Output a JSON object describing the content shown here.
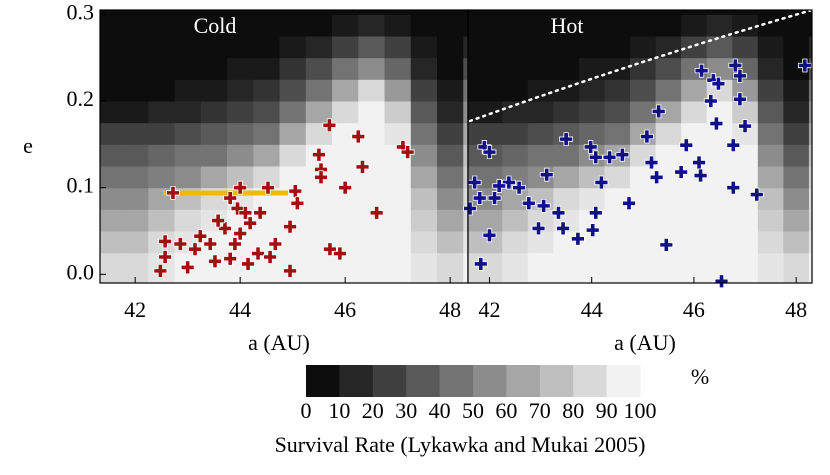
{
  "chart_data": {
    "type": "scatter",
    "ylabel": "e",
    "ylim": [
      -0.01,
      0.305
    ],
    "yticks": [
      {
        "value": 0,
        "label": "0.0"
      },
      0.1,
      0.2,
      0.3
    ],
    "heatmap": {
      "x_bins": [
        41.25,
        41.75,
        42.25,
        42.75,
        43.25,
        43.75,
        44.25,
        44.75,
        45.25,
        45.75,
        46.25,
        46.75,
        47.25,
        47.75,
        48.25,
        48.75
      ],
      "y_bins": [
        -0.025,
        0.025,
        0.05,
        0.075,
        0.1,
        0.125,
        0.15,
        0.175,
        0.2,
        0.225,
        0.25,
        0.275,
        0.3,
        0.325
      ],
      "values": [
        [
          85,
          85,
          90,
          95,
          95,
          95,
          95,
          95,
          95,
          95,
          95,
          95,
          90,
          85,
          95
        ],
        [
          75,
          75,
          85,
          90,
          95,
          95,
          95,
          95,
          95,
          95,
          95,
          95,
          85,
          75,
          90
        ],
        [
          65,
          65,
          75,
          85,
          90,
          95,
          95,
          95,
          95,
          95,
          95,
          95,
          80,
          65,
          85
        ],
        [
          55,
          55,
          65,
          75,
          85,
          90,
          95,
          95,
          95,
          95,
          95,
          95,
          75,
          55,
          85
        ],
        [
          45,
          45,
          50,
          55,
          65,
          75,
          85,
          95,
          95,
          95,
          95,
          95,
          65,
          45,
          80
        ],
        [
          35,
          35,
          40,
          45,
          45,
          55,
          65,
          85,
          95,
          95,
          95,
          95,
          55,
          35,
          75
        ],
        [
          25,
          25,
          25,
          30,
          35,
          40,
          45,
          65,
          85,
          95,
          95,
          90,
          45,
          25,
          65
        ],
        [
          10,
          10,
          15,
          15,
          20,
          25,
          30,
          45,
          65,
          85,
          95,
          80,
          35,
          15,
          55
        ],
        [
          5,
          5,
          5,
          10,
          10,
          15,
          20,
          30,
          45,
          65,
          85,
          60,
          25,
          10,
          45
        ],
        [
          5,
          5,
          5,
          5,
          5,
          10,
          10,
          20,
          30,
          45,
          55,
          40,
          15,
          5,
          30
        ],
        [
          5,
          5,
          5,
          5,
          5,
          5,
          5,
          10,
          15,
          25,
          35,
          25,
          10,
          5,
          15
        ],
        [
          5,
          5,
          5,
          5,
          5,
          5,
          5,
          5,
          5,
          10,
          15,
          10,
          5,
          5,
          5
        ],
        [
          5,
          5,
          5,
          5,
          5,
          5,
          5,
          5,
          5,
          5,
          5,
          5,
          5,
          5,
          5
        ]
      ]
    },
    "panels": [
      {
        "title": "Cold",
        "xlabel": "a (AU)",
        "xlim": [
          41.33,
          48.34
        ],
        "xticks": [
          42,
          44,
          46,
          48
        ],
        "series": [
          {
            "color": "#a01010",
            "x": [
              45.7,
              46.25,
              45.5,
              45.54,
              46.33,
              45.54,
              46.0,
              45.05,
              45.09,
              44.53,
              44.0,
              43.81,
              43.95,
              44.1,
              44.38,
              44.19,
              43.71,
              44.0,
              43.43,
              43.14,
              42.86,
              42.57,
              42.57,
              42.48,
              43.0,
              43.52,
              43.81,
              44.15,
              44.34,
              44.67,
              44.95,
              44.95,
              45.71,
              45.9,
              46.6,
              47.1,
              47.19,
              42.72,
              43.24,
              44.57,
              43.9,
              43.58
            ],
            "values": [
              0.172,
              0.159,
              0.138,
              0.121,
              0.124,
              0.112,
              0.1,
              0.096,
              0.082,
              0.1,
              0.1,
              0.088,
              0.076,
              0.071,
              0.071,
              0.059,
              0.053,
              0.047,
              0.035,
              0.029,
              0.035,
              0.038,
              0.02,
              0.004,
              0.008,
              0.015,
              0.018,
              0.012,
              0.024,
              0.035,
              0.055,
              0.004,
              0.029,
              0.024,
              0.071,
              0.147,
              0.141,
              0.094,
              0.044,
              0.02,
              0.035,
              0.062
            ]
          }
        ]
      },
      {
        "title": "Hot",
        "xlabel": "a (AU)",
        "xlim": [
          41.58,
          48.31
        ],
        "xticks": [
          42,
          44,
          46,
          48
        ],
        "series": [
          {
            "color": "#101088",
            "x": [
              48.17,
              46.81,
              46.9,
              46.15,
              46.38,
              46.48,
              46.33,
              46.9,
              45.31,
              47.0,
              46.44,
              43.5,
              45.08,
              45.85,
              46.77,
              41.9,
              42.0,
              43.98,
              44.08,
              44.35,
              44.6,
              45.17,
              46.1,
              46.13,
              45.75,
              45.27,
              43.12,
              42.38,
              42.19,
              41.71,
              44.19,
              46.77,
              42.58,
              41.81,
              42.1,
              42.77,
              43.06,
              43.35,
              44.08,
              44.73,
              47.23,
              42.96,
              43.44,
              43.73,
              44.02,
              42.0,
              41.62,
              41.83,
              45.46,
              46.54
            ],
            "values": [
              0.241,
              0.241,
              0.229,
              0.235,
              0.224,
              0.22,
              0.2,
              0.202,
              0.188,
              0.171,
              0.174,
              0.156,
              0.159,
              0.149,
              0.149,
              0.147,
              0.141,
              0.147,
              0.135,
              0.135,
              0.138,
              0.129,
              0.129,
              0.114,
              0.118,
              0.112,
              0.115,
              0.106,
              0.102,
              0.106,
              0.106,
              0.1,
              0.1,
              0.088,
              0.088,
              0.082,
              0.079,
              0.071,
              0.071,
              0.082,
              0.092,
              0.053,
              0.053,
              0.041,
              0.051,
              0.045,
              0.076,
              0.012,
              0.034,
              -0.008
            ]
          }
        ]
      }
    ],
    "colorbar": {
      "title": "Survival Rate (Lykawka and Mukai 2005)",
      "unit": "%",
      "ticks": [
        0,
        10,
        20,
        30,
        40,
        50,
        60,
        70,
        80,
        90,
        100
      ]
    }
  }
}
